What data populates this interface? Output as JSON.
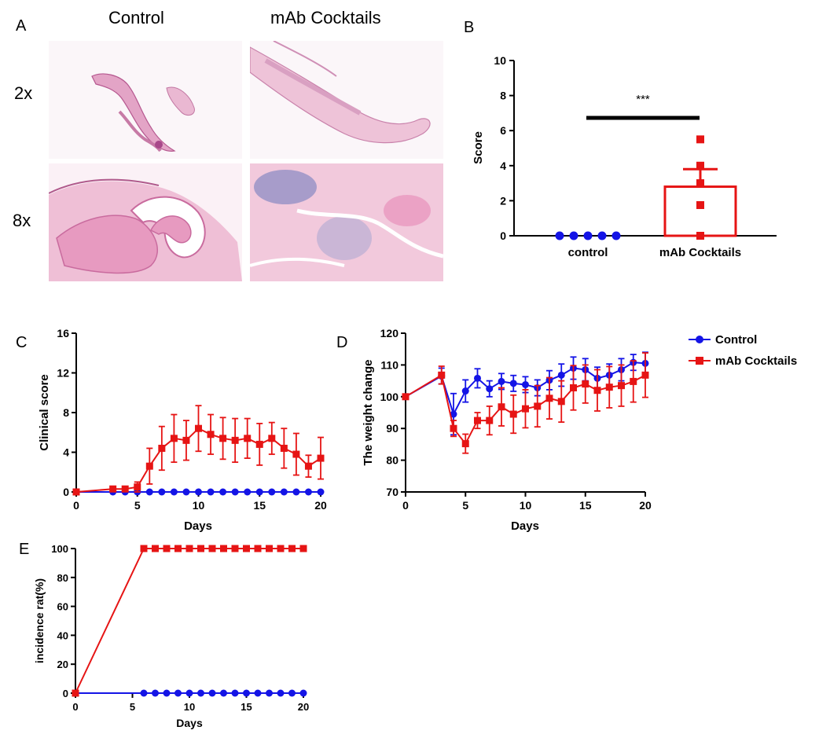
{
  "panel_labels": {
    "A": "A",
    "B": "B",
    "C": "C",
    "D": "D",
    "E": "E"
  },
  "histology": {
    "col_control": "Control",
    "col_mab": "mAb Cocktails",
    "row_2x": "2x",
    "row_8x": "8x"
  },
  "colors": {
    "control": "#1414e6",
    "mab": "#e61414",
    "axis": "#000000",
    "tissue_pink": "#e8a6c8",
    "tissue_purple": "#8d8cc4"
  },
  "chart_data": [
    {
      "id": "B",
      "type": "scatter",
      "ylabel": "Score",
      "ylim": [
        0,
        10
      ],
      "yticks": [
        0,
        2,
        4,
        6,
        8,
        10
      ],
      "categories": [
        "control",
        "mAb Cocktails"
      ],
      "bar_means": [
        0,
        2.8
      ],
      "error_sem": [
        0,
        1.0
      ],
      "points": [
        [
          0,
          0,
          0,
          0,
          0
        ],
        [
          5.5,
          4.0,
          3.0,
          1.75,
          0
        ]
      ],
      "significance": "***"
    },
    {
      "id": "C",
      "type": "line",
      "xlabel": "Days",
      "ylabel": "Clinical score",
      "xlim": [
        0,
        20
      ],
      "ylim": [
        0,
        16
      ],
      "xticks": [
        0,
        5,
        10,
        15,
        20
      ],
      "yticks": [
        0,
        4,
        8,
        12,
        16
      ],
      "series": [
        {
          "name": "Control",
          "x": [
            0,
            3,
            4,
            5,
            6,
            7,
            8,
            9,
            10,
            11,
            12,
            13,
            14,
            15,
            16,
            17,
            18,
            19,
            20
          ],
          "y": [
            0,
            0,
            0,
            0,
            0,
            0,
            0,
            0,
            0,
            0,
            0,
            0,
            0,
            0,
            0,
            0,
            0,
            0,
            0
          ],
          "err": [
            0,
            0,
            0,
            0,
            0,
            0,
            0,
            0,
            0,
            0,
            0,
            0,
            0,
            0,
            0,
            0,
            0,
            0,
            0
          ]
        },
        {
          "name": "mAb Cocktails",
          "x": [
            0,
            3,
            4,
            5,
            6,
            7,
            8,
            9,
            10,
            11,
            12,
            13,
            14,
            15,
            16,
            17,
            18,
            19,
            20
          ],
          "y": [
            0,
            0.3,
            0.3,
            0.5,
            2.6,
            4.4,
            5.4,
            5.2,
            6.4,
            5.8,
            5.4,
            5.2,
            5.4,
            4.8,
            5.4,
            4.4,
            3.8,
            2.6,
            3.4
          ],
          "err": [
            0,
            0.2,
            0.2,
            0.5,
            1.8,
            2.2,
            2.4,
            2.0,
            2.3,
            2.0,
            2.1,
            2.2,
            2.0,
            2.1,
            1.6,
            2.0,
            2.1,
            1.1,
            2.1
          ]
        }
      ]
    },
    {
      "id": "D",
      "type": "line",
      "xlabel": "Days",
      "ylabel": "The weight change",
      "xlim": [
        0,
        20
      ],
      "ylim": [
        70,
        120
      ],
      "xticks": [
        0,
        5,
        10,
        15,
        20
      ],
      "yticks": [
        70,
        80,
        90,
        100,
        110,
        120
      ],
      "legend": {
        "position": "right",
        "entries": [
          "Control",
          "mAb Cocktails"
        ]
      },
      "series": [
        {
          "name": "Control",
          "x": [
            0,
            3,
            4,
            5,
            6,
            7,
            8,
            9,
            10,
            11,
            12,
            13,
            14,
            15,
            16,
            17,
            18,
            19,
            20
          ],
          "y": [
            100,
            106.5,
            94.5,
            101.8,
            105.8,
            102.5,
            104.8,
            104.2,
            103.8,
            102.8,
            105.2,
            106.8,
            109.0,
            108.5,
            105.8,
            106.8,
            108.5,
            110.8,
            110.5
          ],
          "err": [
            0,
            2.5,
            6.5,
            3.5,
            3.0,
            2.5,
            2.5,
            2.5,
            2.5,
            2.5,
            3.0,
            3.5,
            3.5,
            3.5,
            3.5,
            3.5,
            3.5,
            2.5,
            3.5
          ]
        },
        {
          "name": "mAb Cocktails",
          "x": [
            0,
            3,
            4,
            5,
            6,
            7,
            8,
            9,
            10,
            11,
            12,
            13,
            14,
            15,
            16,
            17,
            18,
            19,
            20
          ],
          "y": [
            100,
            106.8,
            90.0,
            85.2,
            92.5,
            92.5,
            96.8,
            94.5,
            96.2,
            97.0,
            99.5,
            98.5,
            102.8,
            104.0,
            102.0,
            103.0,
            103.5,
            104.8,
            106.8
          ],
          "err": [
            0,
            2.8,
            2.5,
            3.0,
            2.5,
            4.5,
            6.0,
            6.0,
            6.0,
            6.5,
            6.5,
            6.5,
            7.0,
            6.0,
            6.5,
            6.5,
            6.5,
            6.5,
            7.0
          ]
        }
      ]
    },
    {
      "id": "E",
      "type": "line",
      "xlabel": "Days",
      "ylabel": "incidence rat(%)",
      "xlim": [
        0,
        20
      ],
      "ylim": [
        0,
        100
      ],
      "xticks": [
        0,
        5,
        10,
        15,
        20
      ],
      "yticks": [
        0,
        20,
        40,
        60,
        80,
        100
      ],
      "series": [
        {
          "name": "Control",
          "x": [
            0,
            6,
            7,
            8,
            9,
            10,
            11,
            12,
            13,
            14,
            15,
            16,
            17,
            18,
            19,
            20
          ],
          "y": [
            0,
            0,
            0,
            0,
            0,
            0,
            0,
            0,
            0,
            0,
            0,
            0,
            0,
            0,
            0,
            0
          ]
        },
        {
          "name": "mAb Cocktails",
          "x": [
            0,
            6,
            7,
            8,
            9,
            10,
            11,
            12,
            13,
            14,
            15,
            16,
            17,
            18,
            19,
            20
          ],
          "y": [
            0,
            100,
            100,
            100,
            100,
            100,
            100,
            100,
            100,
            100,
            100,
            100,
            100,
            100,
            100,
            100
          ]
        }
      ]
    }
  ]
}
